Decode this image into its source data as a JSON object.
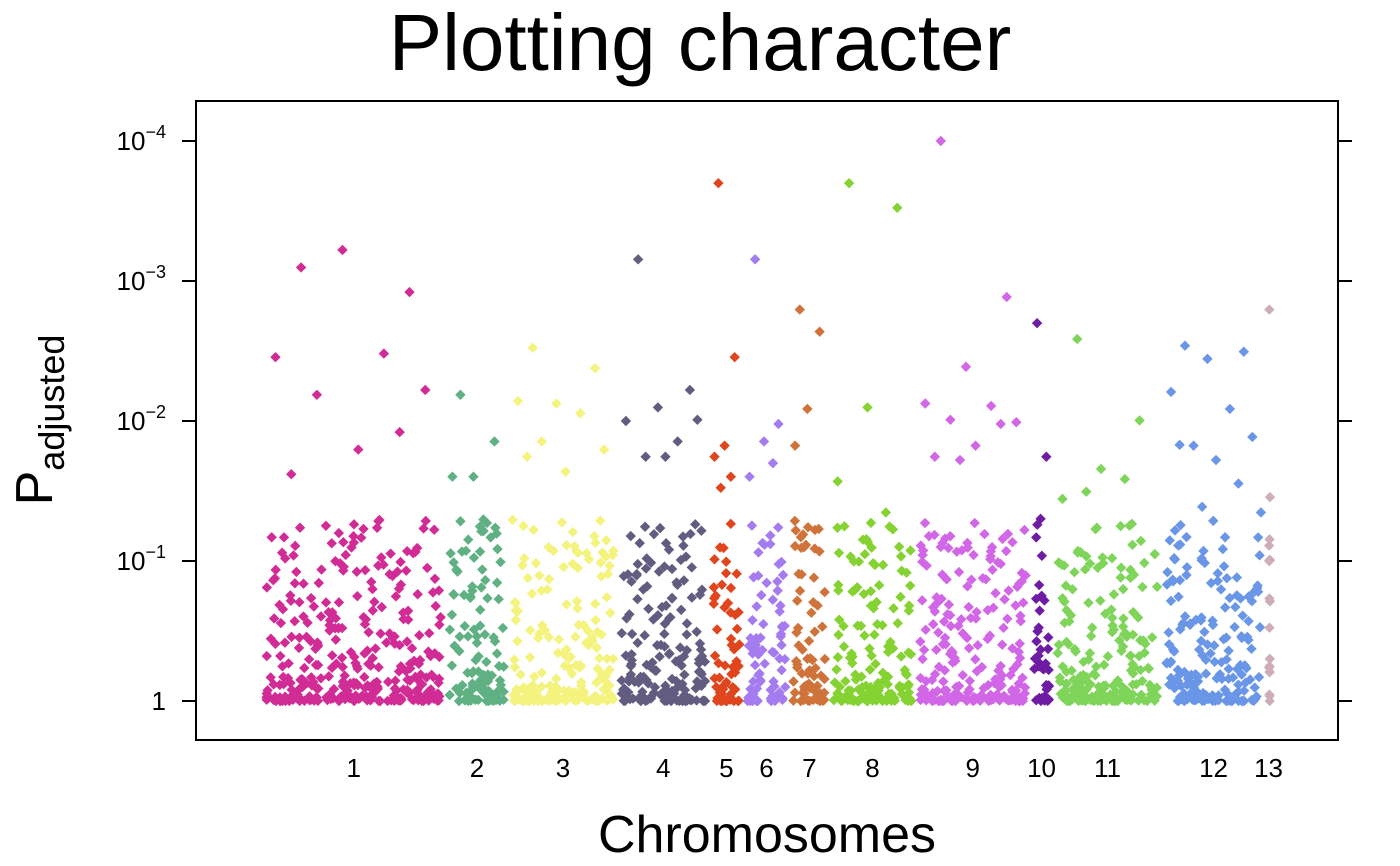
{
  "chart_data": {
    "type": "scatter",
    "title": "Plotting character",
    "xlabel": "Chromosomes",
    "ylabel_main": "P",
    "ylabel_sub": "adjusted",
    "y_scale": "log",
    "ylim": [
      1,
      0.0001
    ],
    "y_ticks": [
      {
        "value": 1,
        "base": "1",
        "exp": ""
      },
      {
        "value": 0.1,
        "base": "10",
        "exp": "−1"
      },
      {
        "value": 0.01,
        "base": "10",
        "exp": "−2"
      },
      {
        "value": 0.001,
        "base": "10",
        "exp": "−3"
      },
      {
        "value": 0.0001,
        "base": "10",
        "exp": "−4"
      }
    ],
    "point_shape": "diamond",
    "grid": false,
    "legend": "none",
    "chromosomes": [
      {
        "label": "1",
        "color": "#d12c96",
        "n": 320,
        "tops": [
          0.0008,
          0.0012,
          0.0006,
          0.0035,
          0.0033,
          0.0065,
          0.006,
          0.016,
          0.024,
          0.012
        ]
      },
      {
        "label": "2",
        "color": "#5fb183",
        "n": 110,
        "tops": [
          0.0065,
          0.014,
          0.025,
          0.025
        ]
      },
      {
        "label": "3",
        "color": "#f3f37d",
        "n": 190,
        "tops": [
          0.003,
          0.0042,
          0.0075,
          0.0072,
          0.0088,
          0.014,
          0.016,
          0.023,
          0.018
        ]
      },
      {
        "label": "4",
        "color": "#625c80",
        "n": 160,
        "tops": [
          0.0007,
          0.006,
          0.008,
          0.01,
          0.014,
          0.018,
          0.0098,
          0.018
        ]
      },
      {
        "label": "5",
        "color": "#e0461e",
        "n": 60,
        "tops": [
          0.0002,
          0.0035,
          0.015,
          0.018,
          0.025,
          0.03
        ]
      },
      {
        "label": "6",
        "color": "#a57cef",
        "n": 80,
        "tops": [
          0.0007,
          0.0105,
          0.014,
          0.025,
          0.02
        ]
      },
      {
        "label": "7",
        "color": "#cf733b",
        "n": 70,
        "tops": [
          0.0016,
          0.0023,
          0.0082,
          0.015,
          0.06
        ]
      },
      {
        "label": "8",
        "color": "#85d233",
        "n": 150,
        "tops": [
          0.0002,
          0.0003,
          0.008,
          0.027,
          0.045
        ]
      },
      {
        "label": "9",
        "color": "#d167e6",
        "n": 200,
        "tops": [
          0.0001,
          0.0013,
          0.0041,
          0.0075,
          0.0078,
          0.0098,
          0.0102,
          0.015,
          0.018,
          0.0105,
          0.019
        ]
      },
      {
        "label": "10",
        "color": "#6d1ca3",
        "n": 40,
        "tops": [
          0.002,
          0.018,
          0.05
        ]
      },
      {
        "label": "11",
        "color": "#7fd45a",
        "n": 190,
        "tops": [
          0.0026,
          0.0099,
          0.022,
          0.036,
          0.026,
          0.032
        ]
      },
      {
        "label": "12",
        "color": "#6a96e8",
        "n": 180,
        "tops": [
          0.0029,
          0.0032,
          0.0036,
          0.0062,
          0.0082,
          0.015,
          0.013,
          0.019,
          0.0148,
          0.028,
          0.041,
          0.045
        ]
      },
      {
        "label": "13",
        "color": "#cdaeb8",
        "n": 12,
        "tops": [
          0.0016,
          0.035,
          0.07,
          0.1,
          0.5,
          0.9
        ]
      }
    ]
  }
}
